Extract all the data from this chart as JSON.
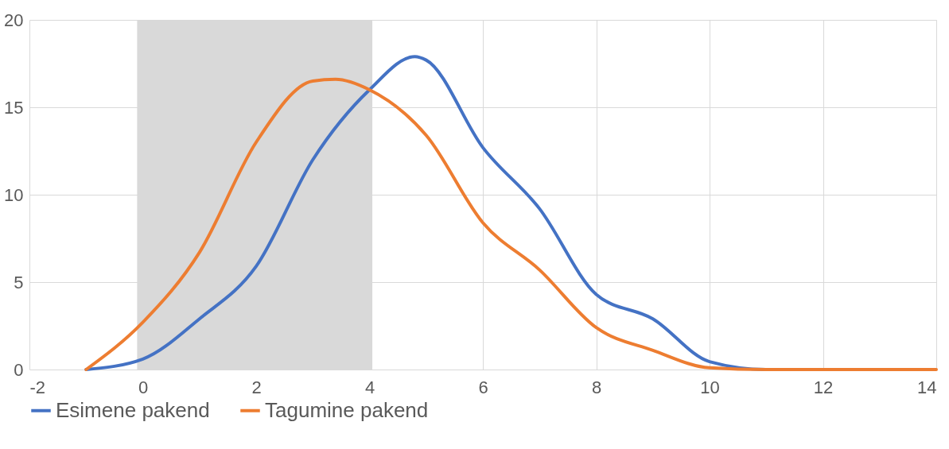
{
  "chart_data": {
    "type": "line",
    "xlim": [
      -2,
      14
    ],
    "xticks": [
      -2,
      0,
      2,
      4,
      6,
      8,
      10,
      12,
      14
    ],
    "ylim": [
      0,
      20
    ],
    "yticks": [
      0,
      5,
      10,
      15,
      20
    ],
    "grid": true,
    "legend": "bottom",
    "line_style": "solid",
    "marker": "none",
    "bands": [
      {
        "axis": "x",
        "from": -0.1,
        "to": 4.05,
        "color": "#d9d9d9"
      }
    ],
    "series": [
      {
        "name": "Esimene pakend",
        "color": "#4472c4",
        "x": [
          -1,
          0,
          1,
          2,
          3,
          4,
          4.8,
          5,
          6,
          7,
          8,
          9,
          10,
          11,
          12
        ],
        "values": [
          0,
          0.6,
          2.9,
          5.9,
          12,
          16,
          17.9,
          17.7,
          12.7,
          9.2,
          4.3,
          2.9,
          0.45,
          0,
          0
        ]
      },
      {
        "name": "Tagumine pakend",
        "color": "#ed7d31",
        "x": [
          -1,
          0,
          1,
          2,
          3,
          3.4,
          4,
          5,
          6,
          7,
          8,
          9,
          10,
          11,
          12,
          13,
          14
        ],
        "values": [
          0,
          2.7,
          6.7,
          13,
          16.5,
          16.6,
          16,
          13.4,
          8.4,
          5.7,
          2.4,
          1.1,
          0.1,
          0,
          0,
          0,
          0
        ]
      }
    ]
  }
}
